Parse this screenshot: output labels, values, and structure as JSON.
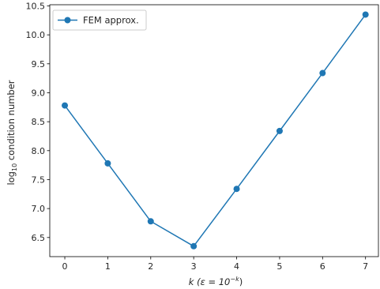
{
  "chart_data": {
    "type": "line",
    "x": [
      0,
      1,
      2,
      3,
      4,
      5,
      6,
      7
    ],
    "series": [
      {
        "name": "FEM approx.",
        "values": [
          8.78,
          7.78,
          6.78,
          6.35,
          7.34,
          8.34,
          9.34,
          10.35
        ],
        "color": "#1f77b4",
        "marker": "circle"
      }
    ],
    "xlabel": {
      "main": "k (ε = 10",
      "sup": "−k",
      "tail": ")"
    },
    "ylabel": {
      "prefix": "log",
      "sub": "10",
      "suffix": " condition number"
    },
    "xticks": [
      0,
      1,
      2,
      3,
      4,
      5,
      6,
      7
    ],
    "xtick_labels": [
      "0",
      "1",
      "2",
      "3",
      "4",
      "5",
      "6",
      "7"
    ],
    "yticks": [
      6.5,
      7.0,
      7.5,
      8.0,
      8.5,
      9.0,
      9.5,
      10.0,
      10.5
    ],
    "ytick_labels": [
      "6.5",
      "7.0",
      "7.5",
      "8.0",
      "8.5",
      "9.0",
      "9.5",
      "10.0",
      "10.5"
    ],
    "xlim": [
      -0.35,
      7.3
    ],
    "ylim": [
      6.17,
      10.52
    ],
    "grid": false,
    "legend_position": "top-left"
  }
}
